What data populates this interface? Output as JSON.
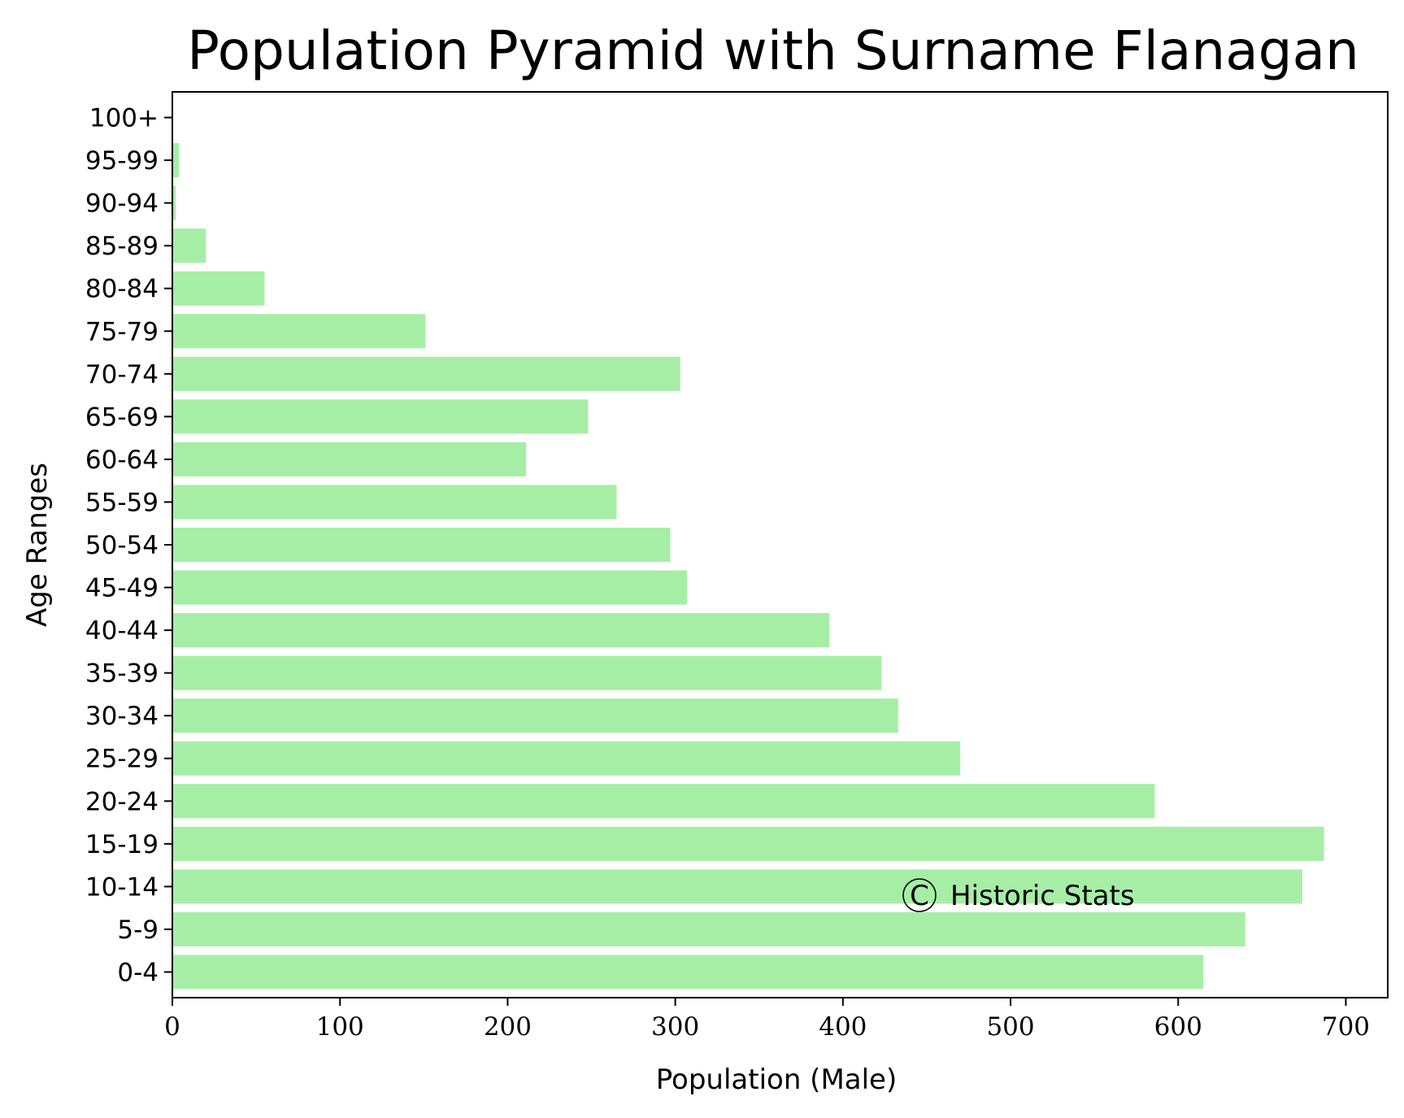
{
  "chart_data": {
    "type": "bar",
    "orientation": "horizontal",
    "title": "Population Pyramid with Surname Flanagan",
    "xlabel": "Population (Male)",
    "ylabel": "Age Ranges",
    "xlim": [
      0,
      725
    ],
    "xticks": [
      0,
      100,
      200,
      300,
      400,
      500,
      600,
      700
    ],
    "grid": false,
    "bar_color": "#a6eea6",
    "categories": [
      "0-4",
      "5-9",
      "10-14",
      "15-19",
      "20-24",
      "25-29",
      "30-34",
      "35-39",
      "40-44",
      "45-49",
      "50-54",
      "55-59",
      "60-64",
      "65-69",
      "70-74",
      "75-79",
      "80-84",
      "85-89",
      "90-94",
      "95-99",
      "100+"
    ],
    "values": [
      615,
      640,
      674,
      687,
      586,
      470,
      433,
      423,
      392,
      307,
      297,
      265,
      211,
      248,
      303,
      151,
      55,
      20,
      2,
      4,
      0
    ],
    "watermark": {
      "symbol": "C",
      "text": "Historic Stats"
    }
  }
}
